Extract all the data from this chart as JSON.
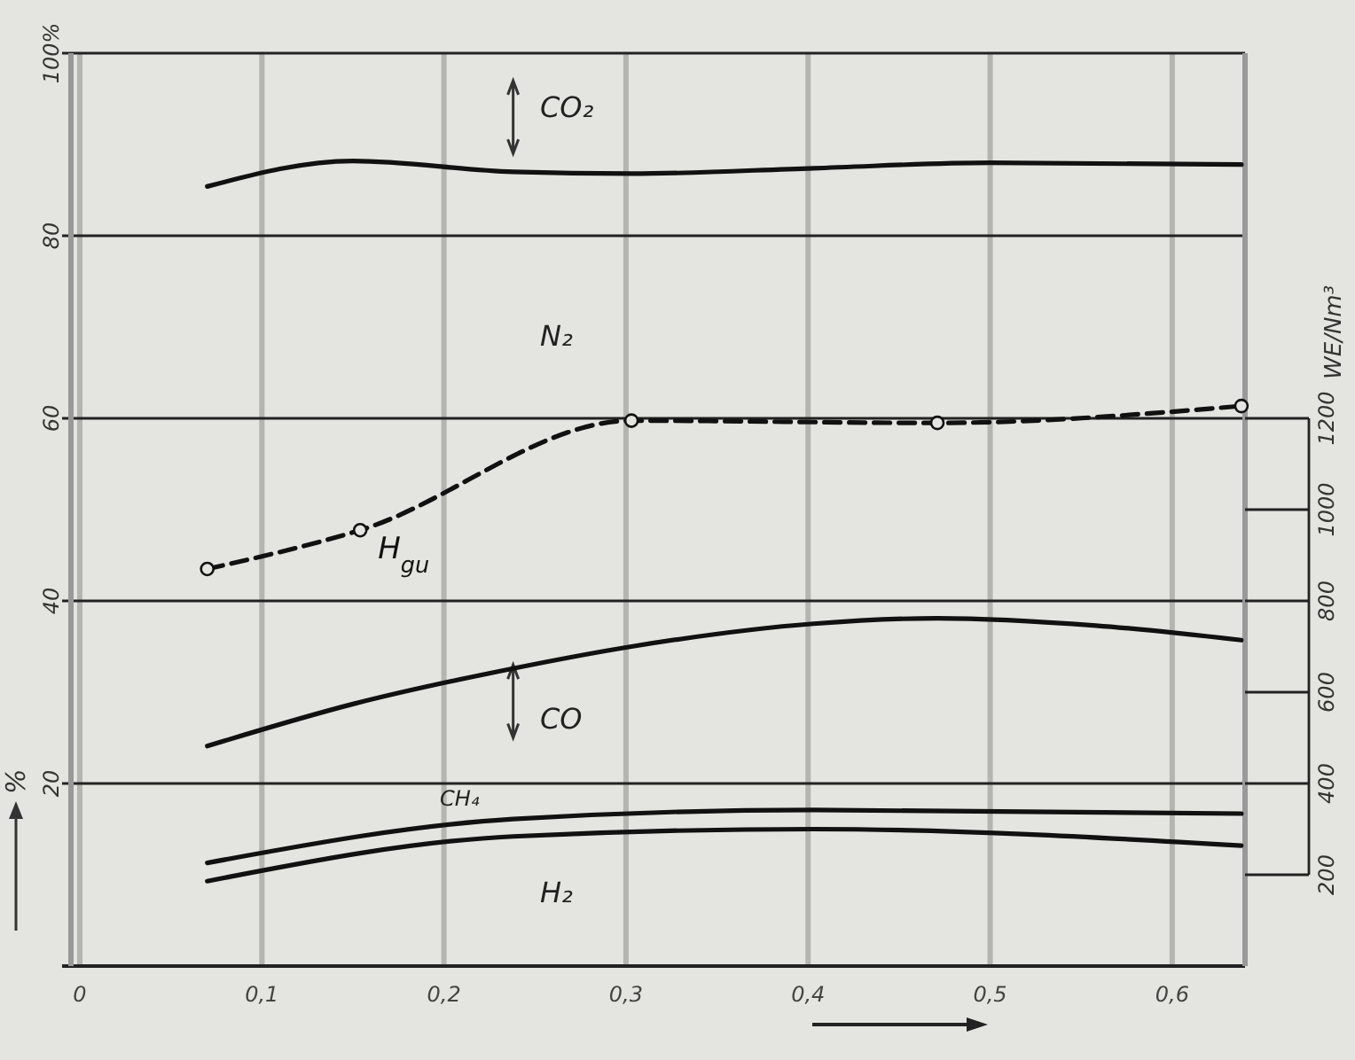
{
  "chart_data": {
    "type": "line",
    "xlim": [
      0,
      0.64
    ],
    "xticks": [
      0,
      {
        "value": 0.1,
        "label": "0,1"
      },
      {
        "value": 0.2,
        "label": "0,2"
      },
      {
        "value": 0.3,
        "label": "0,3"
      },
      {
        "value": 0.4,
        "label": "0,4"
      },
      {
        "value": 0.5,
        "label": "0,5"
      },
      {
        "value": 0.6,
        "label": "0,6"
      }
    ],
    "ylim": [
      0,
      100
    ],
    "yticks": [
      {
        "value": 20,
        "label": "20"
      },
      40,
      60,
      80,
      {
        "value": 100,
        "label": "100%"
      }
    ],
    "ylabel": "%",
    "y2label": "WE/Nm³",
    "y2lim": [
      0,
      2000
    ],
    "y2ticks": [
      200,
      400,
      600,
      800,
      1000,
      1200
    ],
    "grid": true,
    "line_style": "solid",
    "marker": "none",
    "annotations": [
      "CO₂",
      "N₂",
      "CO",
      "CH₄",
      "H₂"
    ],
    "series": [
      {
        "color": "#111111",
        "x": [
          0.07,
          0.15,
          0.238,
          0.303,
          0.403,
          0.5,
          0.638
        ],
        "values": [
          85.4,
          88.2,
          87,
          86.8,
          87.4,
          88,
          87.8
        ]
      },
      {
        "color": "#111111",
        "x": [
          0.07,
          0.15,
          0.238,
          0.303,
          0.403,
          0.471,
          0.558,
          0.638
        ],
        "values": [
          24.1,
          28.7,
          32.6,
          35,
          37.5,
          38.1,
          37.3,
          35.7
        ]
      },
      {
        "color": "#111111",
        "x": [
          0.07,
          0.238,
          0.403,
          0.638
        ],
        "values": [
          11.3,
          16.1,
          17.1,
          16.7
        ]
      },
      {
        "color": "#111111",
        "x": [
          0.07,
          0.238,
          0.403,
          0.638
        ],
        "values": [
          9.3,
          14.2,
          15,
          13.2
        ]
      },
      {
        "name": "H$_{gu}$",
        "color": "#111111",
        "axis": "y2",
        "line_style": "dashed",
        "marker": "circle",
        "x": [
          0.07,
          0.154,
          0.303,
          0.471,
          0.638
        ],
        "values": [
          870,
          955,
          1195,
          1190,
          1227
        ]
      }
    ]
  }
}
